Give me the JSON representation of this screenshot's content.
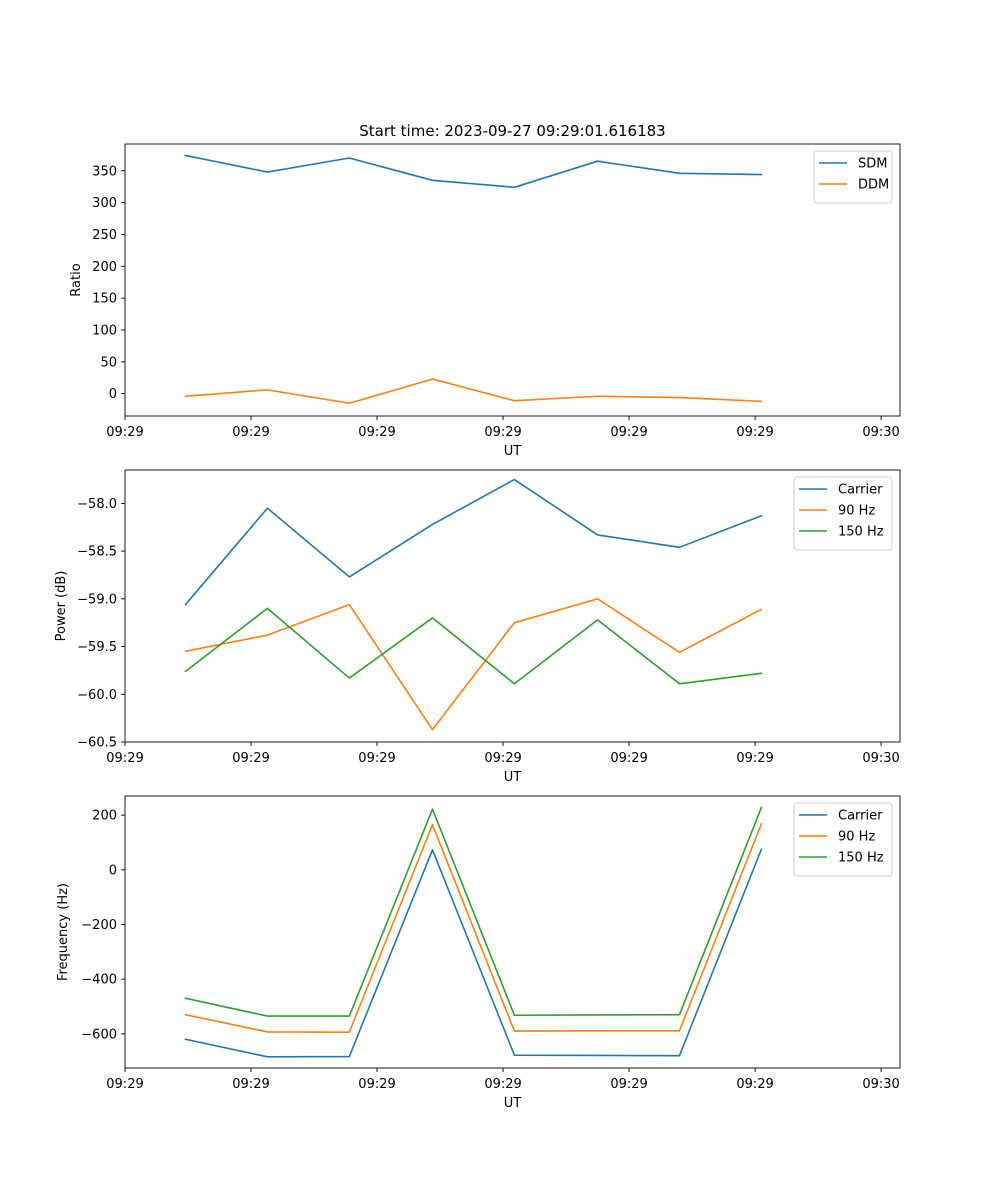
{
  "figure": {
    "title": "Start time: 2023-09-27 09:29:01.616183"
  },
  "chart_data": [
    {
      "type": "line",
      "title": "Start time: 2023-09-27 09:29:01.616183",
      "xlabel": "UT",
      "ylabel": "Ratio",
      "x_tick_labels": [
        "09:29",
        "09:29",
        "09:29",
        "09:29",
        "09:29",
        "09:29",
        "09:30"
      ],
      "xlim": [
        0,
        6.15
      ],
      "x_ticks": [
        0,
        1,
        2,
        3,
        4,
        5,
        6
      ],
      "x": [
        0.48,
        1.13,
        1.78,
        2.44,
        3.09,
        3.75,
        4.4,
        5.05
      ],
      "ylim": [
        -35,
        392
      ],
      "y_ticks": [
        0,
        50,
        100,
        150,
        200,
        250,
        300,
        350
      ],
      "y_tick_labels": [
        "0",
        "50",
        "100",
        "150",
        "200",
        "250",
        "300",
        "350"
      ],
      "legend": "top-right",
      "series": [
        {
          "name": "SDM",
          "color": "#1f77b4",
          "values": [
            374,
            348,
            370,
            335,
            324,
            365,
            346,
            344
          ]
        },
        {
          "name": "DDM",
          "color": "#ff7f0e",
          "values": [
            -4,
            6,
            -15,
            23,
            -11,
            -4,
            -6,
            -12
          ]
        }
      ]
    },
    {
      "type": "line",
      "xlabel": "UT",
      "ylabel": "Power (dB)",
      "x_tick_labels": [
        "09:29",
        "09:29",
        "09:29",
        "09:29",
        "09:29",
        "09:29",
        "09:30"
      ],
      "xlim": [
        0,
        6.15
      ],
      "x_ticks": [
        0,
        1,
        2,
        3,
        4,
        5,
        6
      ],
      "x": [
        0.48,
        1.13,
        1.78,
        2.44,
        3.09,
        3.75,
        4.4,
        5.05
      ],
      "ylim": [
        -60.5,
        -57.65
      ],
      "y_ticks": [
        -60.5,
        -60.0,
        -59.5,
        -59.0,
        -58.5,
        -58.0
      ],
      "y_tick_labels": [
        "−60.5",
        "−60.0",
        "−59.5",
        "−59.0",
        "−58.5",
        "−58.0"
      ],
      "legend": "top-right",
      "series": [
        {
          "name": "Carrier",
          "color": "#1f77b4",
          "values": [
            -59.06,
            -58.05,
            -58.77,
            -58.22,
            -57.75,
            -58.33,
            -58.46,
            -58.13
          ]
        },
        {
          "name": "90 Hz",
          "color": "#ff7f0e",
          "values": [
            -59.55,
            -59.38,
            -59.06,
            -60.37,
            -59.25,
            -59.0,
            -59.56,
            -59.11
          ]
        },
        {
          "name": "150 Hz",
          "color": "#2ca02c",
          "values": [
            -59.76,
            -59.1,
            -59.83,
            -59.2,
            -59.89,
            -59.22,
            -59.89,
            -59.78
          ]
        }
      ]
    },
    {
      "type": "line",
      "xlabel": "UT",
      "ylabel": "Frequency (Hz)",
      "x_tick_labels": [
        "09:29",
        "09:29",
        "09:29",
        "09:29",
        "09:29",
        "09:29",
        "09:30"
      ],
      "xlim": [
        0,
        6.15
      ],
      "x_ticks": [
        0,
        1,
        2,
        3,
        4,
        5,
        6
      ],
      "x": [
        0.48,
        1.13,
        1.78,
        2.44,
        3.09,
        3.75,
        4.4,
        5.05
      ],
      "ylim": [
        -725,
        270
      ],
      "y_ticks": [
        -600,
        -400,
        -200,
        0,
        200
      ],
      "y_tick_labels": [
        "−600",
        "−400",
        "−200",
        "0",
        "200"
      ],
      "legend": "top-right",
      "series": [
        {
          "name": "Carrier",
          "color": "#1f77b4",
          "values": [
            -620,
            -684,
            -683,
            73,
            -678,
            -679,
            -680,
            75
          ]
        },
        {
          "name": "90 Hz",
          "color": "#ff7f0e",
          "values": [
            -530,
            -593,
            -594,
            165,
            -590,
            -589,
            -589,
            168
          ]
        },
        {
          "name": "150 Hz",
          "color": "#2ca02c",
          "values": [
            -470,
            -535,
            -535,
            222,
            -532,
            -531,
            -530,
            228
          ]
        }
      ]
    }
  ]
}
